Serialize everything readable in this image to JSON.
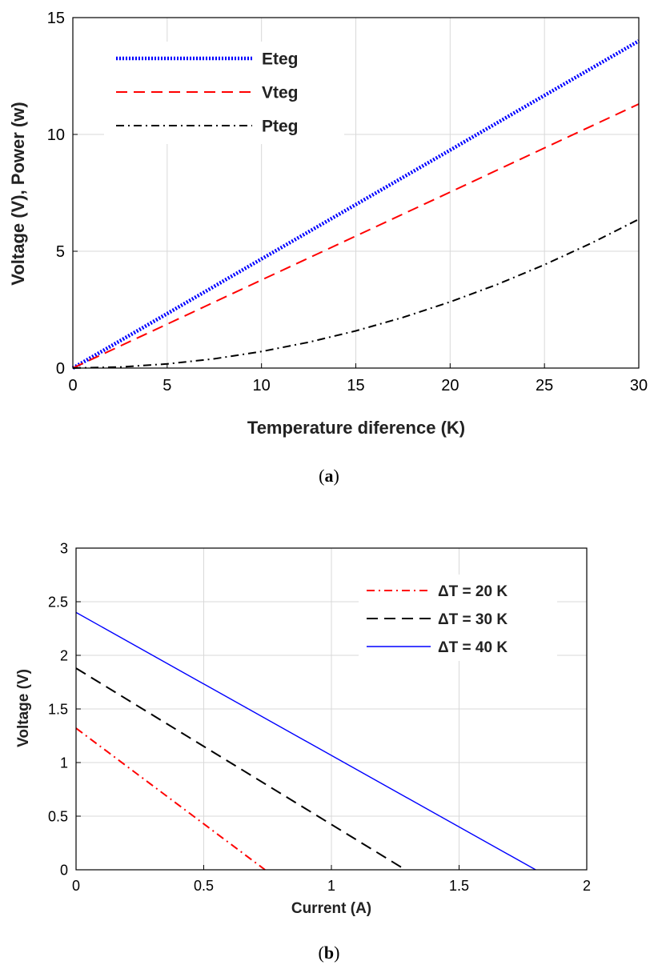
{
  "chart_data": [
    {
      "type": "line",
      "title": "",
      "xlabel": "Temperature diference (K)",
      "ylabel": "Voltage (V), Power (w)",
      "xlim": [
        0,
        30
      ],
      "ylim": [
        0,
        15
      ],
      "xticks": [
        "0",
        "5",
        "10",
        "15",
        "20",
        "25",
        "30"
      ],
      "yticks": [
        "0",
        "5",
        "10",
        "15"
      ],
      "grid": true,
      "legend_position": "top-left",
      "caption_letter": "a",
      "series": [
        {
          "name": "Eteg",
          "style": "dotted",
          "color": "#0000ff",
          "x": [
            0,
            5,
            10,
            15,
            20,
            25,
            30
          ],
          "y": [
            0,
            2.33,
            4.67,
            7.0,
            9.33,
            11.67,
            14.0
          ]
        },
        {
          "name": "Vteg",
          "style": "dashed",
          "color": "#ff0000",
          "x": [
            0,
            5,
            10,
            15,
            20,
            25,
            30
          ],
          "y": [
            0,
            1.88,
            3.77,
            5.65,
            7.53,
            9.42,
            11.3
          ]
        },
        {
          "name": "Pteg",
          "style": "dashdot",
          "color": "#000000",
          "x": [
            0,
            2.5,
            5,
            7.5,
            10,
            12.5,
            15,
            17.5,
            20,
            22.5,
            25,
            27.5,
            30
          ],
          "y": [
            0,
            0.044,
            0.177,
            0.398,
            0.708,
            1.106,
            1.593,
            2.168,
            2.831,
            3.583,
            4.424,
            5.353,
            6.37
          ]
        }
      ]
    },
    {
      "type": "line",
      "title": "",
      "xlabel": "Current (A)",
      "ylabel": "Voltage (V)",
      "xlim": [
        0,
        2
      ],
      "ylim": [
        0,
        3
      ],
      "xticks": [
        "0",
        "0.5",
        "1",
        "1.5",
        "2"
      ],
      "yticks": [
        "0",
        "0.5",
        "1",
        "1.5",
        "2",
        "2.5",
        "3"
      ],
      "grid": true,
      "legend_position": "top-right",
      "caption_letter": "b",
      "series": [
        {
          "name": "ΔT = 20 K",
          "style": "dashdot",
          "color": "#ff0000",
          "x": [
            0,
            0.74
          ],
          "y": [
            1.32,
            0
          ]
        },
        {
          "name": "ΔT = 30 K",
          "style": "dashed",
          "color": "#000000",
          "x": [
            0,
            1.29
          ],
          "y": [
            1.88,
            0
          ]
        },
        {
          "name": "ΔT = 40 K",
          "style": "solid",
          "color": "#0000ff",
          "x": [
            0,
            1.8
          ],
          "y": [
            2.4,
            0
          ]
        }
      ]
    }
  ]
}
